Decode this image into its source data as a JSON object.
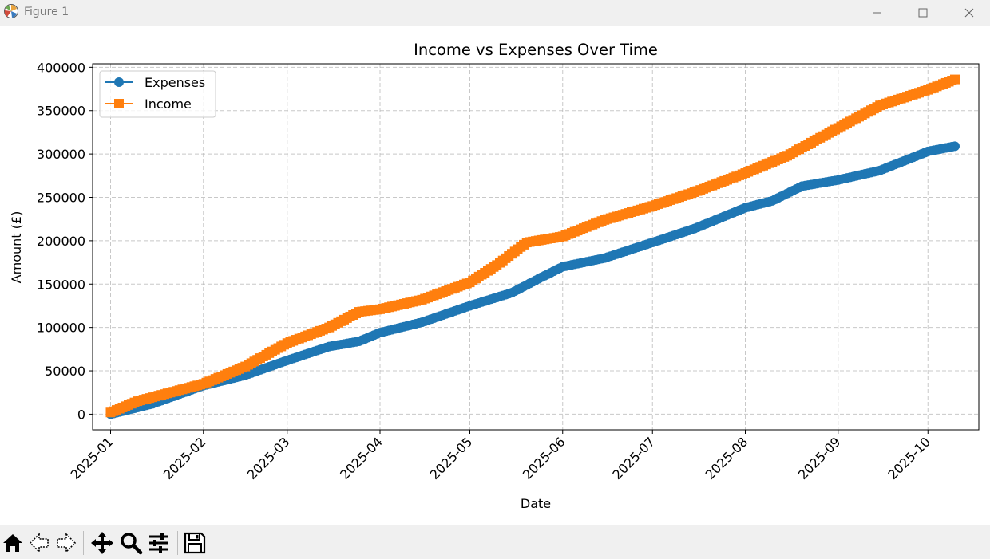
{
  "window": {
    "title": "Figure 1",
    "icons": {
      "app": "matplotlib-logo-icon",
      "minimize": "minimize-icon",
      "maximize": "maximize-icon",
      "close": "close-icon"
    }
  },
  "toolbar": {
    "tools": [
      {
        "name": "home-button",
        "icon": "home-icon"
      },
      {
        "name": "back-button",
        "icon": "back-arrow-icon"
      },
      {
        "name": "forward-button",
        "icon": "forward-arrow-icon"
      },
      {
        "name": "pan-button",
        "icon": "move-icon"
      },
      {
        "name": "zoom-button",
        "icon": "zoom-icon"
      },
      {
        "name": "configure-subplots-button",
        "icon": "sliders-icon"
      },
      {
        "name": "save-button",
        "icon": "save-icon"
      }
    ]
  },
  "chart_data": {
    "type": "line",
    "title": "Income vs Expenses Over Time",
    "xlabel": "Date",
    "ylabel": "Amount (£)",
    "x_ticks": [
      "2025-01",
      "2025-02",
      "2025-03",
      "2025-04",
      "2025-05",
      "2025-06",
      "2025-07",
      "2025-08",
      "2025-09",
      "2025-10"
    ],
    "y_ticks": [
      0,
      50000,
      100000,
      150000,
      200000,
      250000,
      300000,
      350000,
      400000
    ],
    "xlim": [
      "2024-12-26",
      "2025-10-18"
    ],
    "ylim": [
      -18000,
      404000
    ],
    "grid": true,
    "legend_position": "upper-left",
    "series": [
      {
        "name": "Expenses",
        "color": "#1f77b4",
        "marker": "circle",
        "points": [
          [
            "2025-01-01",
            0
          ],
          [
            "2025-01-15",
            12000
          ],
          [
            "2025-02-01",
            33000
          ],
          [
            "2025-02-15",
            45000
          ],
          [
            "2025-03-01",
            62000
          ],
          [
            "2025-03-15",
            78000
          ],
          [
            "2025-03-25",
            84000
          ],
          [
            "2025-04-01",
            94000
          ],
          [
            "2025-04-15",
            106000
          ],
          [
            "2025-05-01",
            125000
          ],
          [
            "2025-05-15",
            140000
          ],
          [
            "2025-05-25",
            158000
          ],
          [
            "2025-06-01",
            170000
          ],
          [
            "2025-06-15",
            180000
          ],
          [
            "2025-07-01",
            198000
          ],
          [
            "2025-07-15",
            214000
          ],
          [
            "2025-08-01",
            238000
          ],
          [
            "2025-08-10",
            246000
          ],
          [
            "2025-08-20",
            263000
          ],
          [
            "2025-09-01",
            270000
          ],
          [
            "2025-09-15",
            281000
          ],
          [
            "2025-10-01",
            303000
          ],
          [
            "2025-10-10",
            309000
          ]
        ]
      },
      {
        "name": "Income",
        "color": "#ff7f0e",
        "marker": "square",
        "points": [
          [
            "2025-01-01",
            2000
          ],
          [
            "2025-01-10",
            15000
          ],
          [
            "2025-02-01",
            35000
          ],
          [
            "2025-02-15",
            55000
          ],
          [
            "2025-03-01",
            82000
          ],
          [
            "2025-03-15",
            100000
          ],
          [
            "2025-03-25",
            118000
          ],
          [
            "2025-04-01",
            121000
          ],
          [
            "2025-04-15",
            132000
          ],
          [
            "2025-05-01",
            152000
          ],
          [
            "2025-05-10",
            172000
          ],
          [
            "2025-05-20",
            198000
          ],
          [
            "2025-06-01",
            205000
          ],
          [
            "2025-06-15",
            224000
          ],
          [
            "2025-07-01",
            240000
          ],
          [
            "2025-07-15",
            256000
          ],
          [
            "2025-08-01",
            278000
          ],
          [
            "2025-08-15",
            298000
          ],
          [
            "2025-09-01",
            330000
          ],
          [
            "2025-09-15",
            356000
          ],
          [
            "2025-10-01",
            374000
          ],
          [
            "2025-10-10",
            386000
          ]
        ]
      }
    ]
  }
}
